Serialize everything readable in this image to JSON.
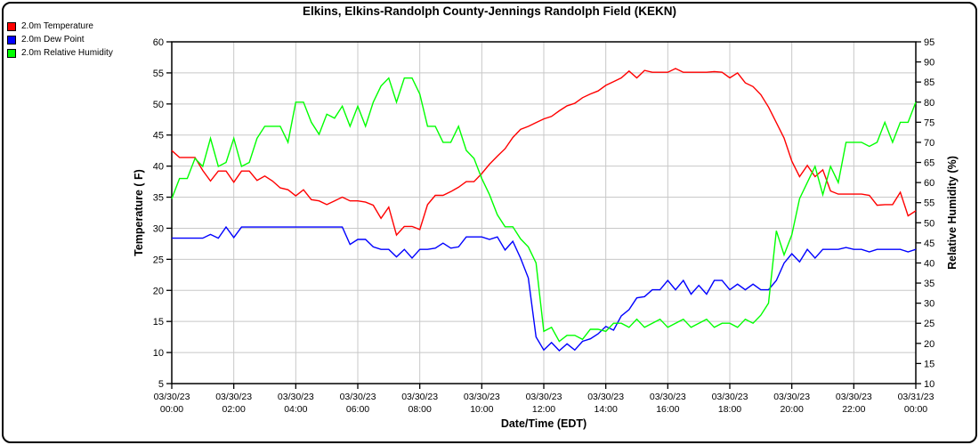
{
  "title": "Elkins, Elkins-Randolph County-Jennings Randolph Field (KEKN)",
  "legend": {
    "items": [
      {
        "label": "2.0m Temperature",
        "color": "#ff0000"
      },
      {
        "label": "2.0m Dew Point",
        "color": "#0000ff"
      },
      {
        "label": "2.0m Relative Humidity",
        "color": "#00ff00"
      }
    ]
  },
  "chart_data": {
    "type": "line",
    "title": "Elkins, Elkins-Randolph County-Jennings Randolph Field (KEKN)",
    "grid": true,
    "grid_color": "#c8c8c8",
    "border_color": "#000000",
    "legend_position": "top-left",
    "x_axis": {
      "label": "Date/Time (EDT)",
      "range_hours": [
        0,
        24
      ],
      "tick_interval_hours": 2,
      "tick_labels": [
        {
          "date": "03/30/23",
          "time": "00:00"
        },
        {
          "date": "03/30/23",
          "time": "02:00"
        },
        {
          "date": "03/30/23",
          "time": "04:00"
        },
        {
          "date": "03/30/23",
          "time": "06:00"
        },
        {
          "date": "03/30/23",
          "time": "08:00"
        },
        {
          "date": "03/30/23",
          "time": "10:00"
        },
        {
          "date": "03/30/23",
          "time": "12:00"
        },
        {
          "date": "03/30/23",
          "time": "14:00"
        },
        {
          "date": "03/30/23",
          "time": "16:00"
        },
        {
          "date": "03/30/23",
          "time": "18:00"
        },
        {
          "date": "03/30/23",
          "time": "20:00"
        },
        {
          "date": "03/30/23",
          "time": "22:00"
        },
        {
          "date": "03/31/23",
          "time": "00:00"
        }
      ]
    },
    "y_axis_left": {
      "label": "Temperature ( F)",
      "min": 5,
      "max": 60,
      "tick_step": 5,
      "ticks": [
        60,
        55,
        50,
        45,
        40,
        35,
        30,
        25,
        20,
        15,
        10,
        5
      ]
    },
    "y_axis_right": {
      "label": "Relative Humidity (%)",
      "min": 10,
      "max": 95,
      "tick_step": 5,
      "ticks": [
        95,
        90,
        85,
        80,
        75,
        70,
        65,
        60,
        55,
        50,
        45,
        40,
        35,
        30,
        25,
        20,
        15,
        10
      ]
    },
    "sample_interval_hours": 0.25,
    "series": [
      {
        "name": "2.0m Temperature",
        "id": "temperature",
        "color": "#ff0000",
        "axis": "left",
        "units": "F",
        "values": [
          42.5,
          41.4,
          41.4,
          41.4,
          39.3,
          37.6,
          39.2,
          39.2,
          37.4,
          39.2,
          39.2,
          37.7,
          38.4,
          37.6,
          36.5,
          36.2,
          35.2,
          36.2,
          34.6,
          34.4,
          33.8,
          34.4,
          35.0,
          34.4,
          34.4,
          34.2,
          33.7,
          31.6,
          33.4,
          28.9,
          30.3,
          30.3,
          29.8,
          33.8,
          35.3,
          35.3,
          35.9,
          36.6,
          37.5,
          37.5,
          38.8,
          40.3,
          41.6,
          42.8,
          44.6,
          45.9,
          46.4,
          47.0,
          47.6,
          48.0,
          48.9,
          49.7,
          50.1,
          51.0,
          51.6,
          52.1,
          53.0,
          53.6,
          54.2,
          55.3,
          54.2,
          55.4,
          55.1,
          55.1,
          55.1,
          55.7,
          55.1,
          55.1,
          55.1,
          55.1,
          55.2,
          55.1,
          54.2,
          55.0,
          53.4,
          52.8,
          51.5,
          49.5,
          47.0,
          44.5,
          40.8,
          38.3,
          40.1,
          38.3,
          39.4,
          36.0,
          35.5,
          35.5,
          35.5,
          35.5,
          35.3,
          33.7,
          33.8,
          33.8,
          35.8,
          32.0,
          32.8
        ]
      },
      {
        "name": "2.0m Dew Point",
        "id": "dew-point",
        "color": "#0000ff",
        "axis": "left",
        "units": "F",
        "values": [
          28.4,
          28.4,
          28.4,
          28.4,
          28.4,
          29.0,
          28.4,
          30.2,
          28.5,
          30.2,
          30.2,
          30.2,
          30.2,
          30.2,
          30.2,
          30.2,
          30.2,
          30.2,
          30.2,
          30.2,
          30.2,
          30.2,
          30.2,
          27.4,
          28.2,
          28.2,
          27.0,
          26.6,
          26.6,
          25.4,
          26.6,
          25.2,
          26.6,
          26.6,
          26.8,
          27.6,
          26.8,
          27.0,
          28.6,
          28.6,
          28.6,
          28.2,
          28.6,
          26.5,
          27.9,
          25.2,
          22.0,
          12.5,
          10.4,
          11.6,
          10.3,
          11.4,
          10.4,
          11.8,
          12.2,
          13.0,
          14.2,
          13.6,
          15.9,
          16.9,
          18.8,
          19.0,
          20.1,
          20.1,
          21.6,
          20.1,
          21.6,
          19.4,
          20.8,
          19.4,
          21.6,
          21.6,
          20.1,
          21.0,
          20.1,
          21.0,
          20.1,
          20.1,
          21.6,
          24.4,
          25.9,
          24.6,
          26.6,
          25.2,
          26.6,
          26.6,
          26.6,
          26.9,
          26.6,
          26.6,
          26.2,
          26.6,
          26.6,
          26.6,
          26.6,
          26.2,
          26.6
        ]
      },
      {
        "name": "2.0m Relative Humidity",
        "id": "relative-humidity",
        "color": "#00ff00",
        "axis": "right",
        "units": "%",
        "values": [
          56,
          61,
          61,
          66,
          64,
          71,
          64,
          65,
          71,
          64,
          65,
          71,
          74,
          74,
          74,
          70,
          80,
          80,
          75,
          72,
          77,
          76,
          79,
          74,
          79,
          74,
          80,
          84,
          86,
          80,
          86,
          86,
          82,
          74,
          74,
          70,
          70,
          74,
          68,
          66,
          61,
          57,
          52,
          49,
          49,
          46,
          44,
          40,
          23,
          24,
          20.5,
          22,
          22,
          21,
          23.5,
          23.5,
          23,
          25,
          25,
          24,
          26,
          24,
          25,
          26,
          24,
          25,
          26,
          24,
          25,
          26,
          24,
          25,
          25,
          24,
          26,
          25,
          27,
          30,
          48,
          42,
          47,
          56,
          60,
          64,
          57,
          64,
          60,
          70,
          70,
          70,
          69,
          70,
          75,
          70,
          75,
          75,
          80
        ]
      }
    ]
  }
}
